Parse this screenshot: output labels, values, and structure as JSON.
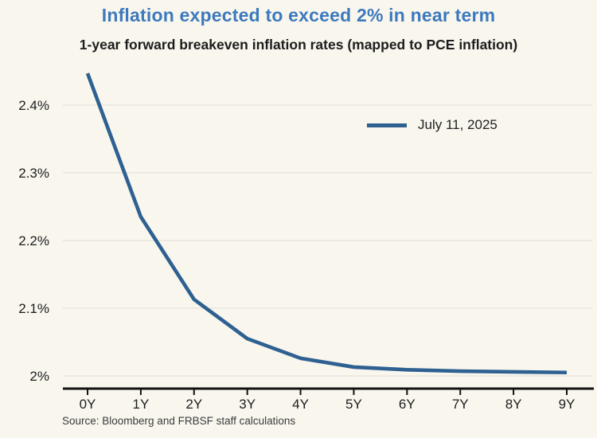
{
  "header": {
    "title": "Inflation expected to exceed 2% in near term",
    "subtitle": "1-year forward breakeven inflation rates (mapped to PCE inflation)"
  },
  "legend": {
    "label": "July 11, 2025"
  },
  "source": "Source: Bloomberg and FRBSF staff calculations",
  "colors": {
    "background": "#f9f6ee",
    "title_blue": "#3d7abd",
    "line_blue": "#2e6191",
    "gridline": "#e6e3da",
    "axis": "#111111",
    "text_dark": "#1d1d1d"
  },
  "chart_data": {
    "type": "line",
    "title": "Inflation expected to exceed 2% in near term",
    "subtitle": "1-year forward breakeven inflation rates (mapped to PCE inflation)",
    "categories": [
      "0Y",
      "1Y",
      "2Y",
      "3Y",
      "4Y",
      "5Y",
      "6Y",
      "7Y",
      "8Y",
      "9Y"
    ],
    "series": [
      {
        "name": "July 11, 2025",
        "values": [
          2.447,
          2.235,
          2.113,
          2.055,
          2.026,
          2.013,
          2.009,
          2.007,
          2.006,
          2.005
        ]
      }
    ],
    "xlabel": "",
    "ylabel": "",
    "y_ticks": [
      {
        "value": 2.0,
        "label": "2%"
      },
      {
        "value": 2.1,
        "label": "2.1%"
      },
      {
        "value": 2.2,
        "label": "2.2%"
      },
      {
        "value": 2.3,
        "label": "2.3%"
      },
      {
        "value": 2.4,
        "label": "2.4%"
      }
    ],
    "ylim": [
      1.981,
      2.46
    ],
    "grid": "horizontal",
    "legend_position": "upper-right"
  }
}
